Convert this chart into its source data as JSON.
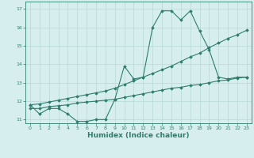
{
  "xlabel": "Humidex (Indice chaleur)",
  "ylabel": "",
  "x": [
    0,
    1,
    2,
    3,
    4,
    5,
    6,
    7,
    8,
    9,
    10,
    11,
    12,
    13,
    14,
    15,
    16,
    17,
    18,
    19,
    20,
    21,
    22,
    23
  ],
  "line1_y": [
    11.8,
    11.3,
    11.6,
    11.6,
    11.3,
    10.9,
    10.9,
    11.0,
    11.0,
    12.1,
    13.9,
    13.2,
    13.3,
    16.0,
    16.9,
    16.9,
    16.4,
    16.9,
    15.8,
    14.8,
    13.3,
    13.2,
    13.3,
    13.3
  ],
  "line2_y": [
    11.8,
    11.85,
    11.95,
    12.05,
    12.15,
    12.25,
    12.35,
    12.45,
    12.55,
    12.7,
    12.9,
    13.1,
    13.3,
    13.5,
    13.7,
    13.9,
    14.15,
    14.4,
    14.6,
    14.9,
    15.15,
    15.4,
    15.6,
    15.85
  ],
  "line3_y": [
    11.6,
    11.6,
    11.7,
    11.75,
    11.8,
    11.9,
    11.95,
    12.0,
    12.05,
    12.1,
    12.2,
    12.3,
    12.4,
    12.5,
    12.6,
    12.7,
    12.75,
    12.85,
    12.9,
    13.0,
    13.1,
    13.15,
    13.25,
    13.3
  ],
  "line_color": "#2e7d6e",
  "bg_color": "#d6eeee",
  "grid_color": "#b8d8d8",
  "ylim": [
    10.8,
    17.4
  ],
  "xlim": [
    -0.5,
    23.5
  ],
  "yticks": [
    11,
    12,
    13,
    14,
    15,
    16,
    17
  ],
  "xticks": [
    0,
    1,
    2,
    3,
    4,
    5,
    6,
    7,
    8,
    9,
    10,
    11,
    12,
    13,
    14,
    15,
    16,
    17,
    18,
    19,
    20,
    21,
    22,
    23
  ],
  "marker": "D",
  "markersize": 1.8,
  "linewidth": 0.8,
  "tick_fontsize": 4.5,
  "xlabel_fontsize": 6.5
}
